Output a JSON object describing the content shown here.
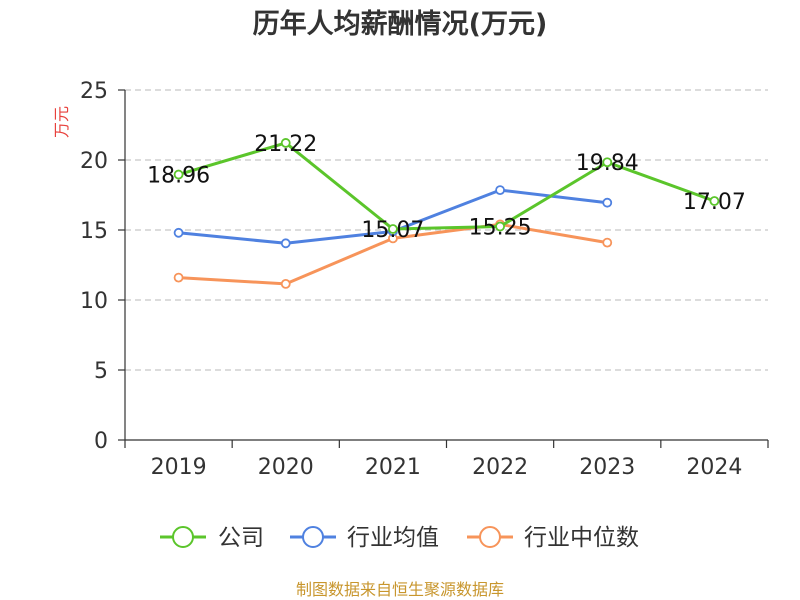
{
  "chart_data": {
    "type": "line",
    "title": "历年人均薪酬情况(万元)",
    "ylabel": "万元",
    "xlabel": "",
    "categories": [
      "2019",
      "2020",
      "2021",
      "2022",
      "2023",
      "2024"
    ],
    "ylim": [
      0,
      25
    ],
    "yticks": [
      0,
      5,
      10,
      15,
      20,
      25
    ],
    "grid": true,
    "legend_position": "bottom",
    "series": [
      {
        "name": "公司",
        "color": "#5bc52b",
        "values": [
          18.96,
          21.22,
          15.07,
          15.25,
          19.84,
          17.07
        ],
        "labels": [
          "18.96",
          "21.22",
          "15.07",
          "15.25",
          "19.84",
          "17.07"
        ]
      },
      {
        "name": "行业均值",
        "color": "#4f81e0",
        "values": [
          14.8,
          14.05,
          14.9,
          17.85,
          16.95,
          null
        ]
      },
      {
        "name": "行业中位数",
        "color": "#f7945a",
        "values": [
          11.6,
          11.15,
          14.4,
          15.4,
          14.1,
          null
        ]
      }
    ]
  },
  "footer": "制图数据来自恒生聚源数据库"
}
